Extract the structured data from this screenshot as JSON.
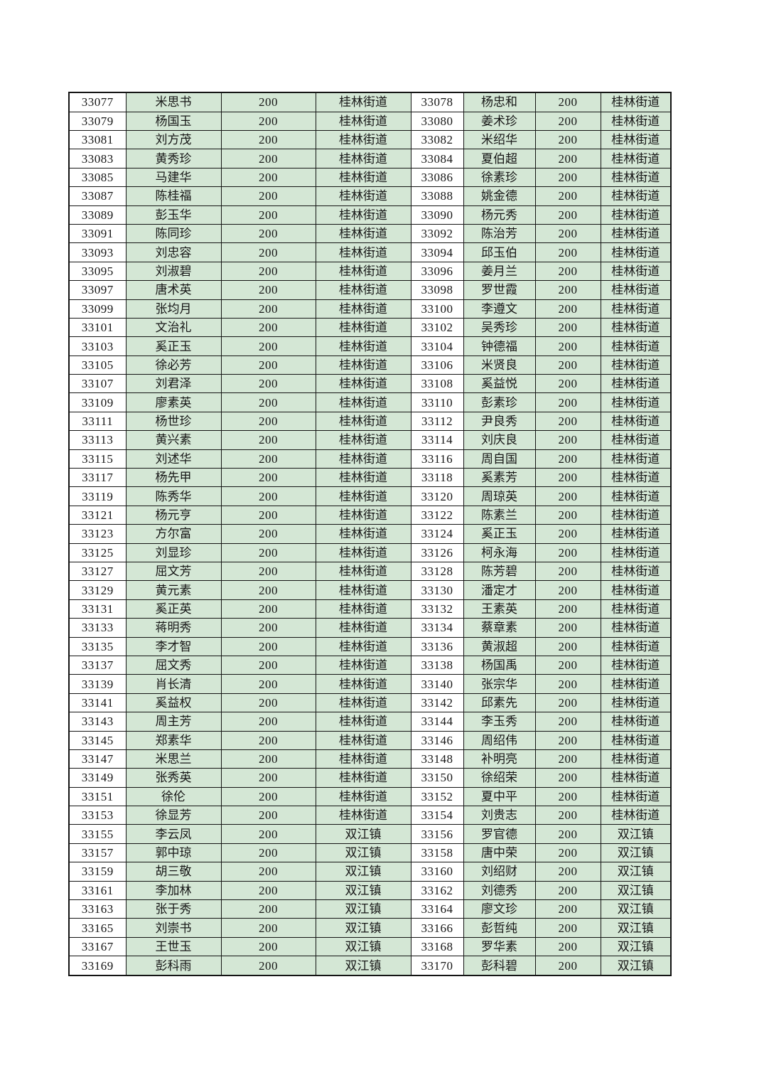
{
  "page": {
    "background": "#ffffff"
  },
  "table": {
    "colors": {
      "green_cell": "#d4e7d5",
      "white_cell": "#ffffff",
      "border": "#141414",
      "text": "#161616"
    },
    "areas_seen": [
      "桂林街道",
      "双江镇"
    ],
    "amount_value": "200",
    "rows": [
      [
        "33077",
        "米思书",
        "200",
        "桂林街道",
        "33078",
        "杨忠和",
        "200",
        "桂林街道"
      ],
      [
        "33079",
        "杨国玉",
        "200",
        "桂林街道",
        "33080",
        "姜术珍",
        "200",
        "桂林街道"
      ],
      [
        "33081",
        "刘方茂",
        "200",
        "桂林街道",
        "33082",
        "米绍华",
        "200",
        "桂林街道"
      ],
      [
        "33083",
        "黄秀珍",
        "200",
        "桂林街道",
        "33084",
        "夏伯超",
        "200",
        "桂林街道"
      ],
      [
        "33085",
        "马建华",
        "200",
        "桂林街道",
        "33086",
        "徐素珍",
        "200",
        "桂林街道"
      ],
      [
        "33087",
        "陈桂福",
        "200",
        "桂林街道",
        "33088",
        "姚金德",
        "200",
        "桂林街道"
      ],
      [
        "33089",
        "彭玉华",
        "200",
        "桂林街道",
        "33090",
        "杨元秀",
        "200",
        "桂林街道"
      ],
      [
        "33091",
        "陈同珍",
        "200",
        "桂林街道",
        "33092",
        "陈治芳",
        "200",
        "桂林街道"
      ],
      [
        "33093",
        "刘忠容",
        "200",
        "桂林街道",
        "33094",
        "邱玉伯",
        "200",
        "桂林街道"
      ],
      [
        "33095",
        "刘淑碧",
        "200",
        "桂林街道",
        "33096",
        "姜月兰",
        "200",
        "桂林街道"
      ],
      [
        "33097",
        "唐术英",
        "200",
        "桂林街道",
        "33098",
        "罗世霞",
        "200",
        "桂林街道"
      ],
      [
        "33099",
        "张均月",
        "200",
        "桂林街道",
        "33100",
        "李遵文",
        "200",
        "桂林街道"
      ],
      [
        "33101",
        "文治礼",
        "200",
        "桂林街道",
        "33102",
        "吴秀珍",
        "200",
        "桂林街道"
      ],
      [
        "33103",
        "奚正玉",
        "200",
        "桂林街道",
        "33104",
        "钟德福",
        "200",
        "桂林街道"
      ],
      [
        "33105",
        "徐必芳",
        "200",
        "桂林街道",
        "33106",
        "米贤良",
        "200",
        "桂林街道"
      ],
      [
        "33107",
        "刘君泽",
        "200",
        "桂林街道",
        "33108",
        "奚益悦",
        "200",
        "桂林街道"
      ],
      [
        "33109",
        "廖素英",
        "200",
        "桂林街道",
        "33110",
        "彭素珍",
        "200",
        "桂林街道"
      ],
      [
        "33111",
        "杨世珍",
        "200",
        "桂林街道",
        "33112",
        "尹良秀",
        "200",
        "桂林街道"
      ],
      [
        "33113",
        "黄兴素",
        "200",
        "桂林街道",
        "33114",
        "刘庆良",
        "200",
        "桂林街道"
      ],
      [
        "33115",
        "刘述华",
        "200",
        "桂林街道",
        "33116",
        "周自国",
        "200",
        "桂林街道"
      ],
      [
        "33117",
        "杨先甲",
        "200",
        "桂林街道",
        "33118",
        "奚素芳",
        "200",
        "桂林街道"
      ],
      [
        "33119",
        "陈秀华",
        "200",
        "桂林街道",
        "33120",
        "周琼英",
        "200",
        "桂林街道"
      ],
      [
        "33121",
        "杨元亨",
        "200",
        "桂林街道",
        "33122",
        "陈素兰",
        "200",
        "桂林街道"
      ],
      [
        "33123",
        "方尔富",
        "200",
        "桂林街道",
        "33124",
        "奚正玉",
        "200",
        "桂林街道"
      ],
      [
        "33125",
        "刘显珍",
        "200",
        "桂林街道",
        "33126",
        "柯永海",
        "200",
        "桂林街道"
      ],
      [
        "33127",
        "屈文芳",
        "200",
        "桂林街道",
        "33128",
        "陈芳碧",
        "200",
        "桂林街道"
      ],
      [
        "33129",
        "黄元素",
        "200",
        "桂林街道",
        "33130",
        "潘定才",
        "200",
        "桂林街道"
      ],
      [
        "33131",
        "奚正英",
        "200",
        "桂林街道",
        "33132",
        "王素英",
        "200",
        "桂林街道"
      ],
      [
        "33133",
        "蒋明秀",
        "200",
        "桂林街道",
        "33134",
        "蔡章素",
        "200",
        "桂林街道"
      ],
      [
        "33135",
        "李才智",
        "200",
        "桂林街道",
        "33136",
        "黄淑超",
        "200",
        "桂林街道"
      ],
      [
        "33137",
        "屈文秀",
        "200",
        "桂林街道",
        "33138",
        "杨国禹",
        "200",
        "桂林街道"
      ],
      [
        "33139",
        "肖长清",
        "200",
        "桂林街道",
        "33140",
        "张宗华",
        "200",
        "桂林街道"
      ],
      [
        "33141",
        "奚益权",
        "200",
        "桂林街道",
        "33142",
        "邱素先",
        "200",
        "桂林街道"
      ],
      [
        "33143",
        "周主芳",
        "200",
        "桂林街道",
        "33144",
        "李玉秀",
        "200",
        "桂林街道"
      ],
      [
        "33145",
        "郑素华",
        "200",
        "桂林街道",
        "33146",
        "周绍伟",
        "200",
        "桂林街道"
      ],
      [
        "33147",
        "米思兰",
        "200",
        "桂林街道",
        "33148",
        "补明亮",
        "200",
        "桂林街道"
      ],
      [
        "33149",
        "张秀英",
        "200",
        "桂林街道",
        "33150",
        "徐绍荣",
        "200",
        "桂林街道"
      ],
      [
        "33151",
        "徐伦",
        "200",
        "桂林街道",
        "33152",
        "夏中平",
        "200",
        "桂林街道"
      ],
      [
        "33153",
        "徐显芳",
        "200",
        "桂林街道",
        "33154",
        "刘贵志",
        "200",
        "桂林街道"
      ],
      [
        "33155",
        "李云凤",
        "200",
        "双江镇",
        "33156",
        "罗官德",
        "200",
        "双江镇"
      ],
      [
        "33157",
        "郭中琼",
        "200",
        "双江镇",
        "33158",
        "唐中荣",
        "200",
        "双江镇"
      ],
      [
        "33159",
        "胡三敬",
        "200",
        "双江镇",
        "33160",
        "刘绍财",
        "200",
        "双江镇"
      ],
      [
        "33161",
        "李加林",
        "200",
        "双江镇",
        "33162",
        "刘德秀",
        "200",
        "双江镇"
      ],
      [
        "33163",
        "张于秀",
        "200",
        "双江镇",
        "33164",
        "廖文珍",
        "200",
        "双江镇"
      ],
      [
        "33165",
        "刘崇书",
        "200",
        "双江镇",
        "33166",
        "彭哲纯",
        "200",
        "双江镇"
      ],
      [
        "33167",
        "王世玉",
        "200",
        "双江镇",
        "33168",
        "罗华素",
        "200",
        "双江镇"
      ],
      [
        "33169",
        "彭科雨",
        "200",
        "双江镇",
        "33170",
        "彭科碧",
        "200",
        "双江镇"
      ]
    ]
  }
}
